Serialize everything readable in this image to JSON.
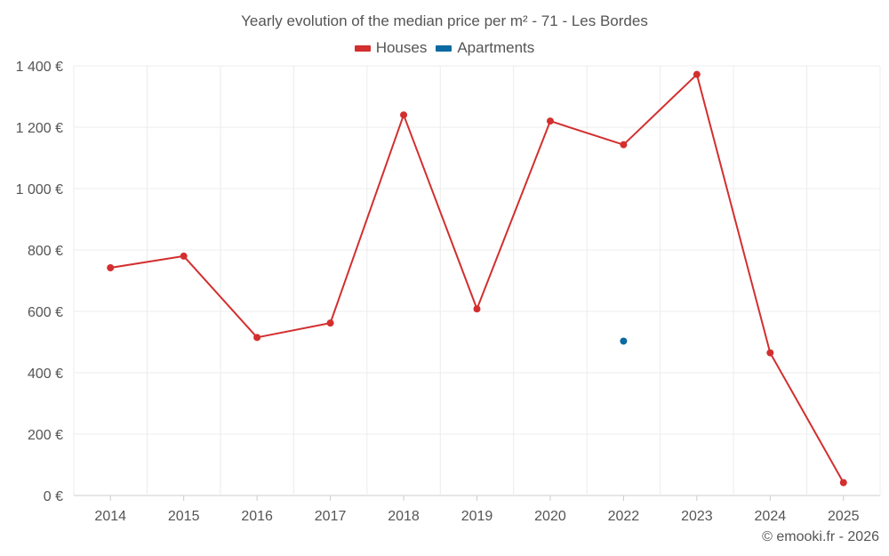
{
  "chart_data": {
    "type": "line",
    "title": "Yearly evolution of the median price per m² - 71 - Les Bordes",
    "categories": [
      "2014",
      "2015",
      "2016",
      "2017",
      "2018",
      "2019",
      "2020",
      "2022",
      "2023",
      "2024",
      "2025"
    ],
    "series": [
      {
        "name": "Houses",
        "color": "#d32f2f",
        "values": [
          742,
          780,
          515,
          562,
          1240,
          608,
          1220,
          1143,
          1372,
          465,
          42
        ]
      },
      {
        "name": "Apartments",
        "color": "#0a6aa1",
        "values": [
          null,
          null,
          null,
          null,
          null,
          null,
          null,
          503,
          null,
          null,
          null
        ]
      }
    ],
    "ylim": [
      0,
      1400
    ],
    "yticks": [
      0,
      200,
      400,
      600,
      800,
      1000,
      1200,
      1400
    ],
    "ytick_labels": [
      "0 €",
      "200 €",
      "400 €",
      "600 €",
      "800 €",
      "1 000 €",
      "1 200 €",
      "1 400 €"
    ],
    "xlabel": "",
    "ylabel": "",
    "grid": true,
    "legend_position": "top-center"
  },
  "credit": "© emooki.fr - 2026"
}
